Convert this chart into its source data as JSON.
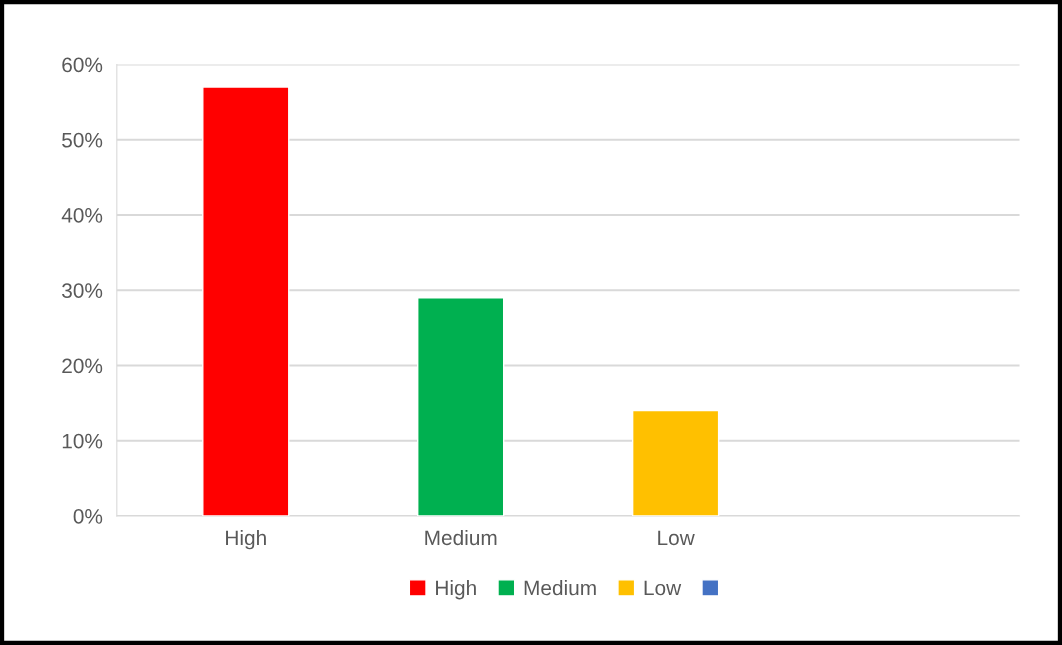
{
  "chart_data": {
    "type": "bar",
    "categories": [
      "High",
      "Medium",
      "Low",
      null
    ],
    "series": [
      {
        "name": "High",
        "color": "#ff0000",
        "values": [
          57,
          null,
          null,
          null
        ]
      },
      {
        "name": "Medium",
        "color": "#00b050",
        "values": [
          null,
          29,
          null,
          null
        ]
      },
      {
        "name": "Low",
        "color": "#ffc000",
        "values": [
          null,
          null,
          14,
          null
        ]
      },
      {
        "color": "#4472c4",
        "values": [
          null,
          null,
          null,
          null
        ]
      }
    ],
    "ylim": [
      0,
      60
    ],
    "yticks": [
      {
        "value": 0,
        "label": "0%"
      },
      {
        "value": 10,
        "label": "10%"
      },
      {
        "value": 20,
        "label": "20%"
      },
      {
        "value": 30,
        "label": "30%"
      },
      {
        "value": 40,
        "label": "40%"
      },
      {
        "value": 50,
        "label": "50%"
      },
      {
        "value": 60,
        "label": "60%"
      }
    ],
    "grid": "y",
    "legend": "bottom"
  }
}
